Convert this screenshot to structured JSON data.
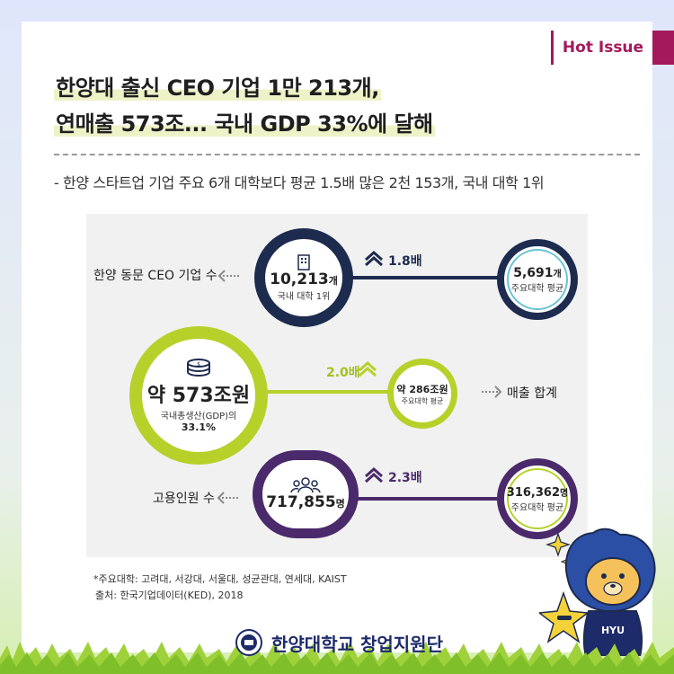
{
  "tag": "Hot Issue",
  "headline": {
    "line1": "한양대 출신 CEO 기업 1만 213개,",
    "line2": "연매출 573조... 국내 GDP 33%에 달해"
  },
  "subline": "- 한양 스타트업 기업 주요 6개 대학보다 평균 1.5배 많은 2천 153개, 국내 대학 1위",
  "rows": {
    "ceo": {
      "label": "한양 동문 CEO 기업 수",
      "value": "10,213",
      "unit": "개",
      "sub": "국내 대학 1위",
      "ratio": "1.8배",
      "compare_value": "5,691",
      "compare_unit": "개",
      "compare_sub": "주요대학 평균"
    },
    "sales": {
      "prefix": "약",
      "value": "573조원",
      "sub1": "국내총생산(GDP)의",
      "sub2": "33.1%",
      "ratio": "2.0배",
      "compare_value": "약 286조원",
      "compare_sub": "주요대학 평균",
      "label": "매출 합계"
    },
    "employ": {
      "label": "고용인원 수",
      "value": "717,855",
      "unit": "명",
      "ratio": "2.3배",
      "compare_value": "316,362",
      "compare_unit": "명",
      "compare_sub": "주요대학 평균"
    }
  },
  "footnote": {
    "line1": "*주요대학: 고려대, 서강대, 서울대, 성균관대, 연세대, KAIST",
    "line2": "출처: 한국기업데이터(KED), 2018"
  },
  "footer": {
    "org": "한양대학교 창업지원단"
  },
  "mascot": {
    "shirt_text": "HYU"
  },
  "colors": {
    "navy": "#1d2b4f",
    "green": "#b7d12a",
    "purple": "#4b2a6b",
    "accent": "#a3195b"
  }
}
